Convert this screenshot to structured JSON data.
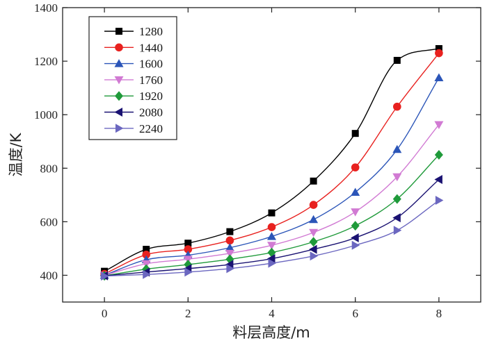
{
  "chart_data": {
    "type": "line",
    "title": "",
    "xlabel": "料层高度/m",
    "ylabel": "温度/K",
    "xlim": [
      -1,
      9
    ],
    "ylim": [
      300,
      1400
    ],
    "x_ticks": [
      "0",
      "2",
      "4",
      "6",
      "8"
    ],
    "y_ticks": [
      "400",
      "600",
      "800",
      "1000",
      "1200",
      "1400"
    ],
    "legend_position": "top-left",
    "x": [
      0,
      1,
      2,
      3,
      4,
      5,
      6,
      7,
      8
    ],
    "series": [
      {
        "name": "1280",
        "marker": "square",
        "color": "#000000",
        "values": [
          415,
          497,
          520,
          563,
          633,
          752,
          930,
          1203,
          1247
        ]
      },
      {
        "name": "1440",
        "marker": "circle",
        "color": "#e8211f",
        "values": [
          405,
          477,
          497,
          530,
          580,
          663,
          803,
          1030,
          1230
        ]
      },
      {
        "name": "1600",
        "marker": "triangle-up",
        "color": "#2b55b8",
        "values": [
          400,
          458,
          475,
          503,
          545,
          608,
          710,
          870,
          1138
        ]
      },
      {
        "name": "1760",
        "marker": "triangle-down",
        "color": "#d17ad3",
        "values": [
          400,
          443,
          460,
          482,
          512,
          560,
          637,
          768,
          963
        ]
      },
      {
        "name": "1920",
        "marker": "diamond",
        "color": "#1f9a3a",
        "values": [
          398,
          423,
          440,
          460,
          485,
          525,
          585,
          685,
          850
        ]
      },
      {
        "name": "2080",
        "marker": "triangle-left",
        "color": "#1a1272",
        "values": [
          398,
          412,
          425,
          440,
          462,
          497,
          540,
          615,
          758
        ]
      },
      {
        "name": "2240",
        "marker": "triangle-right",
        "color": "#6b67c0",
        "values": [
          397,
          403,
          412,
          425,
          445,
          472,
          512,
          568,
          680
        ]
      }
    ]
  }
}
